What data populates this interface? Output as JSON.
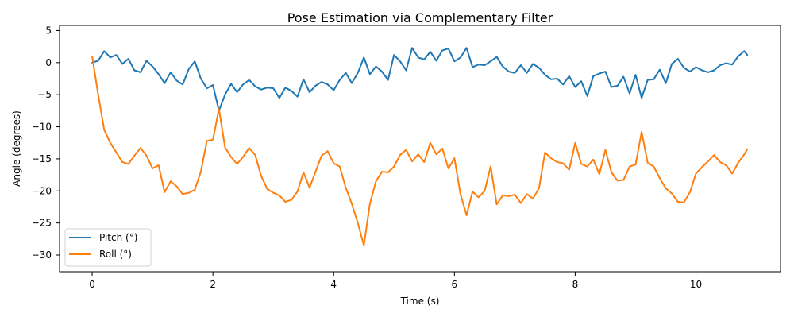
{
  "chart_data": {
    "type": "line",
    "title": "Pose Estimation via Complementary Filter",
    "xlabel": "Time (s)",
    "ylabel": "Angle (degrees)",
    "xlim": [
      -0.54,
      11.4
    ],
    "ylim": [
      -32.6,
      5.8
    ],
    "xticks": [
      0,
      2,
      4,
      6,
      8,
      10
    ],
    "yticks": [
      5,
      0,
      -5,
      -10,
      -15,
      -20,
      -25,
      -30
    ],
    "xtick_labels": [
      "0",
      "2",
      "4",
      "6",
      "8",
      "10"
    ],
    "ytick_labels": [
      "5",
      "0",
      "−5",
      "−10",
      "−15",
      "−20",
      "−25",
      "−30"
    ],
    "grid": false,
    "legend_position": "lower-left",
    "x": [
      0.0,
      0.1,
      0.2,
      0.3,
      0.4,
      0.5,
      0.6,
      0.7,
      0.8,
      0.9,
      1.0,
      1.1,
      1.2,
      1.3,
      1.4,
      1.5,
      1.6,
      1.7,
      1.8,
      1.9,
      2.0,
      2.1,
      2.2,
      2.3,
      2.4,
      2.5,
      2.6,
      2.7,
      2.8,
      2.9,
      3.0,
      3.1,
      3.2,
      3.3,
      3.4,
      3.5,
      3.6,
      3.7,
      3.8,
      3.9,
      4.0,
      4.1,
      4.2,
      4.3,
      4.4,
      4.5,
      4.6,
      4.7,
      4.8,
      4.9,
      5.0,
      5.1,
      5.2,
      5.3,
      5.4,
      5.5,
      5.6,
      5.7,
      5.8,
      5.9,
      6.0,
      6.1,
      6.2,
      6.3,
      6.4,
      6.5,
      6.6,
      6.7,
      6.8,
      6.9,
      7.0,
      7.1,
      7.2,
      7.3,
      7.4,
      7.5,
      7.6,
      7.7,
      7.8,
      7.9,
      8.0,
      8.1,
      8.2,
      8.3,
      8.4,
      8.5,
      8.6,
      8.7,
      8.8,
      8.9,
      9.0,
      9.1,
      9.2,
      9.3,
      9.4,
      9.5,
      9.6,
      9.7,
      9.8,
      9.9,
      10.0,
      10.1,
      10.2,
      10.3,
      10.4,
      10.5,
      10.6,
      10.7,
      10.8,
      10.85
    ],
    "series": [
      {
        "name": "Pitch (°)",
        "color": "#1f77b4",
        "values": [
          0.0,
          0.3,
          1.8,
          0.8,
          1.2,
          -0.2,
          0.6,
          -1.2,
          -1.5,
          0.3,
          -0.6,
          -1.8,
          -3.2,
          -1.5,
          -2.8,
          -3.4,
          -1.0,
          0.2,
          -2.5,
          -4.0,
          -3.5,
          -7.5,
          -5.0,
          -3.3,
          -4.6,
          -3.4,
          -2.7,
          -3.7,
          -4.2,
          -3.9,
          -4.0,
          -5.5,
          -3.9,
          -4.4,
          -5.3,
          -2.6,
          -4.6,
          -3.6,
          -3.0,
          -3.4,
          -4.3,
          -2.7,
          -1.6,
          -3.2,
          -1.6,
          0.8,
          -1.8,
          -0.6,
          -1.4,
          -2.7,
          1.2,
          0.2,
          -1.2,
          2.3,
          0.8,
          0.5,
          1.7,
          0.3,
          1.9,
          2.2,
          0.2,
          0.8,
          2.3,
          -0.7,
          -0.3,
          -0.4,
          0.2,
          0.9,
          -0.6,
          -1.4,
          -1.6,
          -0.4,
          -1.6,
          -0.2,
          -0.8,
          -1.9,
          -2.6,
          -2.5,
          -3.4,
          -2.1,
          -3.8,
          -2.9,
          -5.2,
          -2.1,
          -1.7,
          -1.4,
          -3.8,
          -3.6,
          -2.2,
          -4.8,
          -1.9,
          -5.5,
          -2.7,
          -2.6,
          -1.1,
          -3.2,
          -0.2,
          0.6,
          -0.8,
          -1.4,
          -0.7,
          -1.2,
          -1.5,
          -1.2,
          -0.4,
          -0.1,
          -0.3,
          1.0,
          1.8,
          1.2
        ]
      },
      {
        "name": "Roll (°)",
        "color": "#ff7f0e",
        "values": [
          1.0,
          -5.0,
          -10.5,
          -12.5,
          -14.0,
          -15.5,
          -15.8,
          -14.5,
          -13.3,
          -14.5,
          -16.5,
          -16.0,
          -20.2,
          -18.5,
          -19.3,
          -20.5,
          -20.3,
          -19.8,
          -17.0,
          -12.2,
          -12.0,
          -7.2,
          -13.2,
          -14.7,
          -15.8,
          -14.7,
          -13.3,
          -14.4,
          -17.7,
          -19.7,
          -20.3,
          -20.7,
          -21.7,
          -21.4,
          -20.1,
          -17.1,
          -19.5,
          -17.0,
          -14.5,
          -13.8,
          -15.7,
          -16.2,
          -19.5,
          -22.0,
          -25.0,
          -28.5,
          -22.0,
          -18.5,
          -17.0,
          -17.1,
          -16.2,
          -14.4,
          -13.6,
          -15.4,
          -14.3,
          -15.5,
          -12.5,
          -14.3,
          -13.4,
          -16.5,
          -14.9,
          -20.5,
          -23.8,
          -20.1,
          -21.0,
          -20.0,
          -16.2,
          -22.1,
          -20.7,
          -20.8,
          -20.6,
          -21.9,
          -20.5,
          -21.2,
          -19.6,
          -14.0,
          -14.9,
          -15.5,
          -15.7,
          -16.7,
          -12.5,
          -15.8,
          -16.2,
          -15.1,
          -17.4,
          -13.6,
          -17.1,
          -18.4,
          -18.3,
          -16.2,
          -15.9,
          -10.8,
          -15.6,
          -16.2,
          -18.0,
          -19.6,
          -20.4,
          -21.7,
          -21.8,
          -20.2,
          -17.3,
          -16.3,
          -15.4,
          -14.4,
          -15.5,
          -16.0,
          -17.3,
          -15.6,
          -14.3,
          -13.5
        ]
      }
    ]
  }
}
